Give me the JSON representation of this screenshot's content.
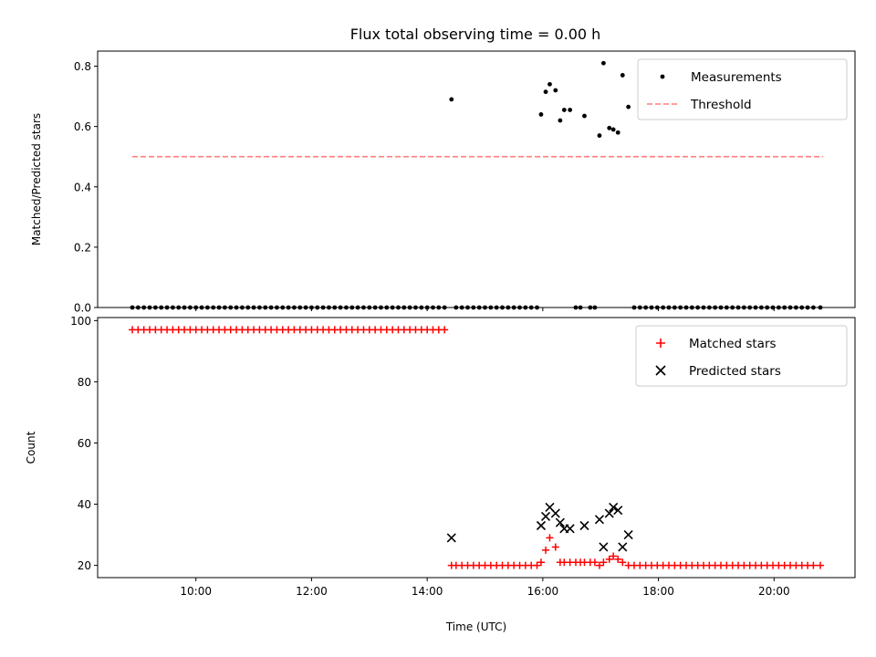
{
  "figure": {
    "title": "Flux total observing time = 0.00 h"
  },
  "chart_data": [
    {
      "type": "scatter",
      "panel": "top",
      "ylabel": "Matched/Predicted stars",
      "xlabel": "",
      "xlim": [
        8.3,
        21.4
      ],
      "ylim": [
        0,
        0.85
      ],
      "yticks": [
        0.0,
        0.2,
        0.4,
        0.6,
        0.8
      ],
      "ytick_labels": [
        "0.0",
        "0.2",
        "0.4",
        "0.6",
        "0.8"
      ],
      "xticks": [
        10,
        12,
        14,
        16,
        18,
        20
      ],
      "legend_position": "top-right",
      "colors": {
        "measurements": "#000000",
        "threshold": "#ff7f7f"
      },
      "series": [
        {
          "name": "Measurements",
          "kind": "scatter",
          "marker": "dot",
          "points": [
            [
              8.9,
              0
            ],
            [
              9.0,
              0
            ],
            [
              9.1,
              0
            ],
            [
              9.2,
              0
            ],
            [
              9.3,
              0
            ],
            [
              9.4,
              0
            ],
            [
              9.5,
              0
            ],
            [
              9.6,
              0
            ],
            [
              9.7,
              0
            ],
            [
              9.8,
              0
            ],
            [
              9.9,
              0
            ],
            [
              10.0,
              0
            ],
            [
              10.1,
              0
            ],
            [
              10.2,
              0
            ],
            [
              10.3,
              0
            ],
            [
              10.4,
              0
            ],
            [
              10.5,
              0
            ],
            [
              10.6,
              0
            ],
            [
              10.7,
              0
            ],
            [
              10.8,
              0
            ],
            [
              10.9,
              0
            ],
            [
              11.0,
              0
            ],
            [
              11.1,
              0
            ],
            [
              11.2,
              0
            ],
            [
              11.3,
              0
            ],
            [
              11.4,
              0
            ],
            [
              11.5,
              0
            ],
            [
              11.6,
              0
            ],
            [
              11.7,
              0
            ],
            [
              11.8,
              0
            ],
            [
              11.9,
              0
            ],
            [
              12.0,
              0
            ],
            [
              12.1,
              0
            ],
            [
              12.2,
              0
            ],
            [
              12.3,
              0
            ],
            [
              12.4,
              0
            ],
            [
              12.5,
              0
            ],
            [
              12.6,
              0
            ],
            [
              12.7,
              0
            ],
            [
              12.8,
              0
            ],
            [
              12.9,
              0
            ],
            [
              13.0,
              0
            ],
            [
              13.1,
              0
            ],
            [
              13.2,
              0
            ],
            [
              13.3,
              0
            ],
            [
              13.4,
              0
            ],
            [
              13.5,
              0
            ],
            [
              13.6,
              0
            ],
            [
              13.7,
              0
            ],
            [
              13.8,
              0
            ],
            [
              13.9,
              0
            ],
            [
              14.0,
              0
            ],
            [
              14.1,
              0
            ],
            [
              14.2,
              0
            ],
            [
              14.3,
              0
            ],
            [
              14.42,
              0.69
            ],
            [
              14.5,
              0
            ],
            [
              14.6,
              0
            ],
            [
              14.7,
              0
            ],
            [
              14.8,
              0
            ],
            [
              14.9,
              0
            ],
            [
              15.0,
              0
            ],
            [
              15.1,
              0
            ],
            [
              15.2,
              0
            ],
            [
              15.3,
              0
            ],
            [
              15.4,
              0
            ],
            [
              15.5,
              0
            ],
            [
              15.6,
              0
            ],
            [
              15.7,
              0
            ],
            [
              15.8,
              0
            ],
            [
              15.9,
              0
            ],
            [
              15.97,
              0.64
            ],
            [
              16.05,
              0.715
            ],
            [
              16.12,
              0.74
            ],
            [
              16.22,
              0.72
            ],
            [
              16.3,
              0.62
            ],
            [
              16.37,
              0.655
            ],
            [
              16.47,
              0.655
            ],
            [
              16.57,
              0
            ],
            [
              16.65,
              0
            ],
            [
              16.72,
              0.635
            ],
            [
              16.82,
              0
            ],
            [
              16.9,
              0
            ],
            [
              16.98,
              0.57
            ],
            [
              17.05,
              0.81
            ],
            [
              17.15,
              0.595
            ],
            [
              17.22,
              0.59
            ],
            [
              17.3,
              0.58
            ],
            [
              17.38,
              0.77
            ],
            [
              17.48,
              0.665
            ],
            [
              17.58,
              0
            ],
            [
              17.68,
              0
            ],
            [
              17.78,
              0
            ],
            [
              17.88,
              0
            ],
            [
              17.98,
              0
            ],
            [
              18.08,
              0
            ],
            [
              18.18,
              0
            ],
            [
              18.28,
              0
            ],
            [
              18.38,
              0
            ],
            [
              18.48,
              0
            ],
            [
              18.58,
              0
            ],
            [
              18.68,
              0
            ],
            [
              18.78,
              0
            ],
            [
              18.88,
              0
            ],
            [
              18.98,
              0
            ],
            [
              19.08,
              0
            ],
            [
              19.18,
              0
            ],
            [
              19.28,
              0
            ],
            [
              19.38,
              0
            ],
            [
              19.48,
              0
            ],
            [
              19.58,
              0
            ],
            [
              19.68,
              0
            ],
            [
              19.78,
              0
            ],
            [
              19.88,
              0
            ],
            [
              19.98,
              0
            ],
            [
              20.08,
              0
            ],
            [
              20.18,
              0
            ],
            [
              20.28,
              0
            ],
            [
              20.38,
              0
            ],
            [
              20.48,
              0
            ],
            [
              20.58,
              0
            ],
            [
              20.68,
              0
            ],
            [
              20.8,
              0
            ]
          ]
        },
        {
          "name": "Threshold",
          "kind": "line",
          "style": "dashed",
          "points": [
            [
              8.9,
              0.5
            ],
            [
              20.85,
              0.5
            ]
          ]
        }
      ]
    },
    {
      "type": "scatter",
      "panel": "bottom",
      "xlabel": "Time (UTC)",
      "ylabel": "Count",
      "xlim": [
        8.3,
        21.4
      ],
      "ylim": [
        16,
        101
      ],
      "yticks": [
        20,
        40,
        60,
        80,
        100
      ],
      "ytick_labels": [
        "20",
        "40",
        "60",
        "80",
        "100"
      ],
      "xticks": [
        10,
        12,
        14,
        16,
        18,
        20
      ],
      "xtick_labels": [
        "10:00",
        "12:00",
        "14:00",
        "16:00",
        "18:00",
        "20:00"
      ],
      "legend_position": "top-right",
      "colors": {
        "matched": "#ff0000",
        "predicted": "#000000"
      },
      "series": [
        {
          "name": "Matched stars",
          "marker": "plus",
          "points": [
            [
              8.9,
              97
            ],
            [
              9.0,
              97
            ],
            [
              9.1,
              97
            ],
            [
              9.2,
              97
            ],
            [
              9.3,
              97
            ],
            [
              9.4,
              97
            ],
            [
              9.5,
              97
            ],
            [
              9.6,
              97
            ],
            [
              9.7,
              97
            ],
            [
              9.8,
              97
            ],
            [
              9.9,
              97
            ],
            [
              10.0,
              97
            ],
            [
              10.1,
              97
            ],
            [
              10.2,
              97
            ],
            [
              10.3,
              97
            ],
            [
              10.4,
              97
            ],
            [
              10.5,
              97
            ],
            [
              10.6,
              97
            ],
            [
              10.7,
              97
            ],
            [
              10.8,
              97
            ],
            [
              10.9,
              97
            ],
            [
              11.0,
              97
            ],
            [
              11.1,
              97
            ],
            [
              11.2,
              97
            ],
            [
              11.3,
              97
            ],
            [
              11.4,
              97
            ],
            [
              11.5,
              97
            ],
            [
              11.6,
              97
            ],
            [
              11.7,
              97
            ],
            [
              11.8,
              97
            ],
            [
              11.9,
              97
            ],
            [
              12.0,
              97
            ],
            [
              12.1,
              97
            ],
            [
              12.2,
              97
            ],
            [
              12.3,
              97
            ],
            [
              12.4,
              97
            ],
            [
              12.5,
              97
            ],
            [
              12.6,
              97
            ],
            [
              12.7,
              97
            ],
            [
              12.8,
              97
            ],
            [
              12.9,
              97
            ],
            [
              13.0,
              97
            ],
            [
              13.1,
              97
            ],
            [
              13.2,
              97
            ],
            [
              13.3,
              97
            ],
            [
              13.4,
              97
            ],
            [
              13.5,
              97
            ],
            [
              13.6,
              97
            ],
            [
              13.7,
              97
            ],
            [
              13.8,
              97
            ],
            [
              13.9,
              97
            ],
            [
              14.0,
              97
            ],
            [
              14.1,
              97
            ],
            [
              14.2,
              97
            ],
            [
              14.3,
              97
            ],
            [
              14.42,
              20
            ],
            [
              14.5,
              20
            ],
            [
              14.6,
              20
            ],
            [
              14.7,
              20
            ],
            [
              14.8,
              20
            ],
            [
              14.9,
              20
            ],
            [
              15.0,
              20
            ],
            [
              15.1,
              20
            ],
            [
              15.2,
              20
            ],
            [
              15.3,
              20
            ],
            [
              15.4,
              20
            ],
            [
              15.5,
              20
            ],
            [
              15.6,
              20
            ],
            [
              15.7,
              20
            ],
            [
              15.8,
              20
            ],
            [
              15.9,
              20
            ],
            [
              15.97,
              21
            ],
            [
              16.05,
              25
            ],
            [
              16.12,
              29
            ],
            [
              16.22,
              26
            ],
            [
              16.3,
              21
            ],
            [
              16.37,
              21
            ],
            [
              16.47,
              21
            ],
            [
              16.57,
              21
            ],
            [
              16.65,
              21
            ],
            [
              16.72,
              21
            ],
            [
              16.82,
              21
            ],
            [
              16.9,
              21
            ],
            [
              16.98,
              20
            ],
            [
              17.05,
              21
            ],
            [
              17.15,
              22
            ],
            [
              17.22,
              23
            ],
            [
              17.3,
              22
            ],
            [
              17.38,
              21
            ],
            [
              17.48,
              20
            ],
            [
              17.58,
              20
            ],
            [
              17.68,
              20
            ],
            [
              17.78,
              20
            ],
            [
              17.88,
              20
            ],
            [
              17.98,
              20
            ],
            [
              18.08,
              20
            ],
            [
              18.18,
              20
            ],
            [
              18.28,
              20
            ],
            [
              18.38,
              20
            ],
            [
              18.48,
              20
            ],
            [
              18.58,
              20
            ],
            [
              18.68,
              20
            ],
            [
              18.78,
              20
            ],
            [
              18.88,
              20
            ],
            [
              18.98,
              20
            ],
            [
              19.08,
              20
            ],
            [
              19.18,
              20
            ],
            [
              19.28,
              20
            ],
            [
              19.38,
              20
            ],
            [
              19.48,
              20
            ],
            [
              19.58,
              20
            ],
            [
              19.68,
              20
            ],
            [
              19.78,
              20
            ],
            [
              19.88,
              20
            ],
            [
              19.98,
              20
            ],
            [
              20.08,
              20
            ],
            [
              20.18,
              20
            ],
            [
              20.28,
              20
            ],
            [
              20.38,
              20
            ],
            [
              20.48,
              20
            ],
            [
              20.58,
              20
            ],
            [
              20.68,
              20
            ],
            [
              20.8,
              20
            ]
          ]
        },
        {
          "name": "Predicted stars",
          "marker": "x",
          "points": [
            [
              14.42,
              29
            ],
            [
              15.97,
              33
            ],
            [
              16.05,
              36
            ],
            [
              16.12,
              39
            ],
            [
              16.22,
              37
            ],
            [
              16.3,
              34
            ],
            [
              16.37,
              32
            ],
            [
              16.47,
              32
            ],
            [
              16.72,
              33
            ],
            [
              16.98,
              35
            ],
            [
              17.05,
              26
            ],
            [
              17.15,
              37
            ],
            [
              17.22,
              39
            ],
            [
              17.3,
              38
            ],
            [
              17.38,
              26
            ],
            [
              17.48,
              30
            ]
          ]
        }
      ]
    }
  ]
}
